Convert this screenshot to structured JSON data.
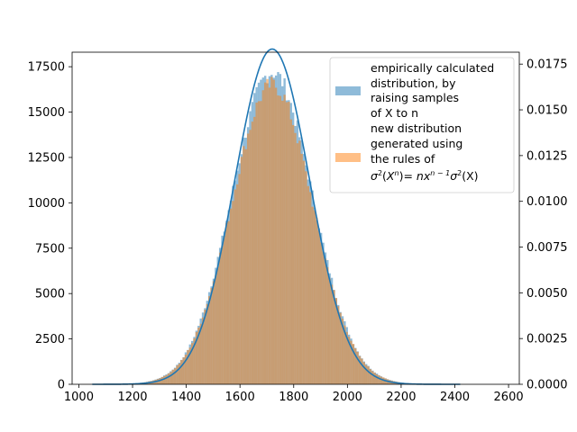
{
  "chart_data": {
    "type": "bar",
    "subtype": "overlaid-histogram-with-density-curve",
    "title": "",
    "xlabel": "",
    "ylabel": "",
    "xlim": [
      975,
      2640
    ],
    "ylim_left": [
      0,
      18300
    ],
    "ylim_right": [
      0,
      0.01815
    ],
    "x_ticks": [
      1000,
      1200,
      1400,
      1600,
      1800,
      2000,
      2200,
      2400,
      2600
    ],
    "x_tick_labels": [
      "1000",
      "1200",
      "1400",
      "1600",
      "1800",
      "2000",
      "2200",
      "2400",
      "2600"
    ],
    "y_left_ticks": [
      0,
      2500,
      5000,
      7500,
      10000,
      12500,
      15000,
      17500
    ],
    "y_left_tick_labels": [
      "0",
      "2500",
      "5000",
      "7500",
      "10000",
      "12500",
      "15000",
      "17500"
    ],
    "y_right_ticks": [
      0,
      0.0025,
      0.005,
      0.0075,
      0.01,
      0.0125,
      0.015,
      0.0175
    ],
    "y_right_tick_labels": [
      "0.0000",
      "0.0025",
      "0.0050",
      "0.0075",
      "0.0100",
      "0.0125",
      "0.0150",
      "0.0175"
    ],
    "legend_placement": "upper right",
    "series": [
      {
        "name": "empirically calculated distribution, by raising samples of X to n",
        "kind": "histogram",
        "axis": "left",
        "color": "#1f77b4",
        "opacity": 0.5,
        "bin_width": 8,
        "range": [
          1050,
          2420
        ],
        "peak_count": 17200,
        "mean": 1720,
        "sd": 150
      },
      {
        "name": "new distribution generated using the rules of σ²(Xⁿ)= nxⁿ⁻¹σ²(X)",
        "kind": "histogram",
        "axis": "left",
        "color": "#ff7f0e",
        "opacity": 0.5,
        "bin_width": 8,
        "range": [
          1050,
          2420
        ],
        "peak_count": 16500,
        "mean": 1720,
        "sd": 150
      },
      {
        "name": "",
        "kind": "density-curve",
        "axis": "right",
        "color": "#1f77b4",
        "mean": 1720,
        "sd": 140,
        "peak": 0.01832,
        "range": [
          1050,
          2420
        ]
      }
    ]
  },
  "legend": {
    "entry1_lines": [
      "empirically calculated",
      "distribution, by",
      "raising samples",
      "of X to n"
    ],
    "entry2_lines": [
      "new distribution",
      "generated using",
      "the rules of"
    ],
    "entry2_formula": {
      "sigma": "σ",
      "sq": "2",
      "open": "(",
      "X": "X",
      "n_sup": "n",
      "close_eq": ")= ",
      "nx": "nx",
      "exp": "n − 1",
      "sigma2": "σ",
      "sq2": "2",
      "tail": "(X)"
    }
  }
}
